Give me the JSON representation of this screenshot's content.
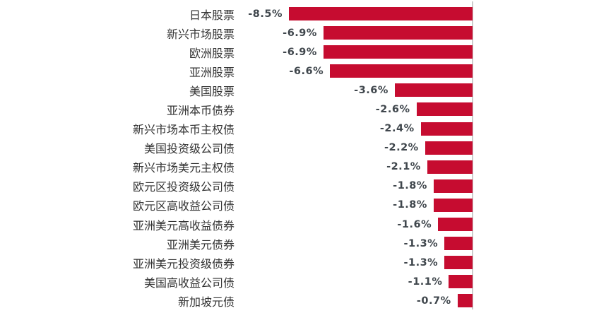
{
  "chart_data": {
    "type": "bar",
    "orientation": "horizontal",
    "title": "",
    "xlabel": "",
    "ylabel": "",
    "xlim": [
      -8.7,
      0
    ],
    "grid": false,
    "legend": false,
    "categories": [
      "日本股票",
      "新兴市场股票",
      "欧洲股票",
      "亚洲股票",
      "美国股票",
      "亚洲本币债券",
      "新兴市场本币主权债",
      "美国投资级公司债",
      "新兴市场美元主权债",
      "欧元区投资级公司债",
      "欧元区高收益公司债",
      "亚洲美元高收益债券",
      "亚洲美元债券",
      "亚洲美元投资级债券",
      "美国高收益公司债",
      "新加坡元债"
    ],
    "values": [
      -8.5,
      -6.9,
      -6.9,
      -6.6,
      -3.6,
      -2.6,
      -2.4,
      -2.2,
      -2.1,
      -1.8,
      -1.8,
      -1.6,
      -1.3,
      -1.3,
      -1.1,
      -0.7
    ],
    "value_labels": [
      "-8.5%",
      "-6.9%",
      "-6.9%",
      "-6.6%",
      "-3.6%",
      "-2.6%",
      "-2.4%",
      "-2.2%",
      "-2.1%",
      "-1.8%",
      "-1.8%",
      "-1.6%",
      "-1.3%",
      "-1.3%",
      "-1.1%",
      "-0.7%"
    ],
    "colors": {
      "bar": "#C60C30",
      "value_label": "#40474D",
      "category_label": "#333333",
      "axis_line": "#CCCCCC",
      "background": "#FFFFFF"
    }
  }
}
